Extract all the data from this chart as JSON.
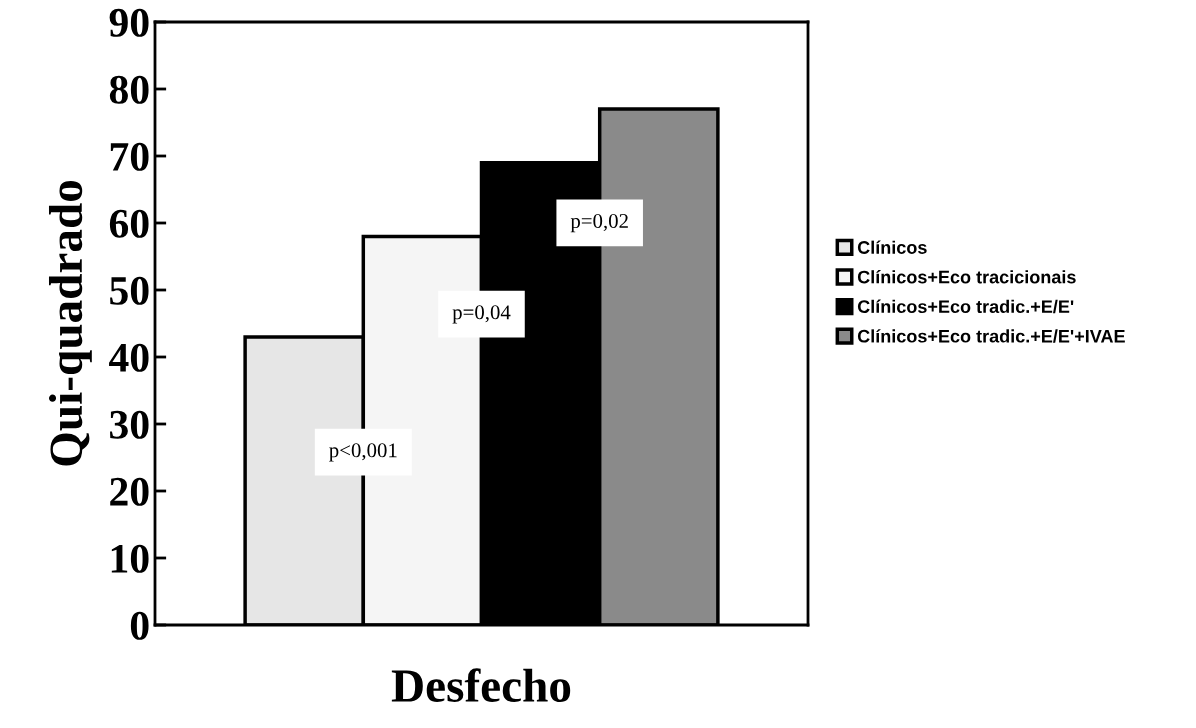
{
  "chart_data": {
    "type": "bar",
    "xlabel": "Desfecho",
    "ylabel": "Qui-quadrado",
    "categories": [
      null
    ],
    "series": [
      {
        "name": "Clínicos",
        "color": "#e6e6e6",
        "values": [
          43
        ]
      },
      {
        "name": "Clínicos+Eco tracicionais",
        "color": "#f5f5f5",
        "values": [
          58
        ]
      },
      {
        "name": "Clínicos+Eco tradic.+E/E'",
        "color": "#000000",
        "values": [
          69
        ]
      },
      {
        "name": "Clínicos+Eco tradic.+E/E'+IVAE",
        "color": "#8a8a8a",
        "values": [
          77
        ]
      }
    ],
    "ylim": [
      0,
      90
    ],
    "yticks": [
      0,
      10,
      20,
      30,
      40,
      50,
      60,
      70,
      80,
      90
    ],
    "annotations": [
      "p<0,001",
      "p=0,04",
      "p=0,02"
    ],
    "grid": false,
    "legend": "right"
  }
}
